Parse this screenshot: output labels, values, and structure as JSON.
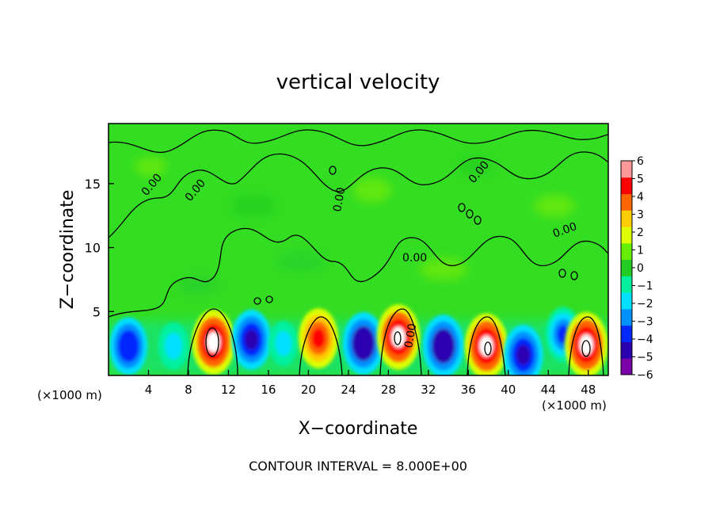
{
  "chart_data": {
    "type": "heatmap",
    "title": "vertical velocity",
    "xlabel": "X−coordinate",
    "ylabel": "Z−coordinate",
    "x_unit_left": "(×1000 m)",
    "x_unit_right": "(×1000 m)",
    "footer": "CONTOUR INTERVAL = 8.000E+00",
    "xlim": [
      0,
      50
    ],
    "ylim": [
      0,
      19.7
    ],
    "x_ticks": [
      4,
      8,
      12,
      16,
      20,
      24,
      28,
      32,
      36,
      40,
      44,
      48
    ],
    "y_ticks": [
      5,
      10,
      15
    ],
    "colorbar": {
      "min": -6,
      "max": 6,
      "ticks": [
        6,
        5,
        4,
        3,
        2,
        1,
        0,
        -1,
        -2,
        -3,
        -4,
        -5,
        -6
      ],
      "tick_labels": [
        "6",
        "5",
        "4",
        "3",
        "2",
        "1",
        "0",
        "−1",
        "−2",
        "−3",
        "−4",
        "−5",
        "−6"
      ],
      "colors": [
        "#7a00a8",
        "#2c00b0",
        "#0028ff",
        "#0090ff",
        "#00e0ff",
        "#00f0a0",
        "#22cc22",
        "#66ee00",
        "#ddff00",
        "#ffcc00",
        "#ff6600",
        "#ff0000",
        "#ff9999"
      ]
    },
    "contour_labels": [
      "0.00",
      "0.00",
      "0.00",
      "0.00",
      "0.00",
      "0.00",
      "0.00"
    ],
    "cells": [
      {
        "x": 2.0,
        "z": 2.3,
        "value": -4.5
      },
      {
        "x": 6.5,
        "z": 2.3,
        "value": -2.5
      },
      {
        "x": 10.5,
        "z": 2.6,
        "value": 6.0
      },
      {
        "x": 14.3,
        "z": 2.8,
        "value": -5.0
      },
      {
        "x": 17.5,
        "z": 2.5,
        "value": -2.0
      },
      {
        "x": 21.0,
        "z": 2.9,
        "value": 5.0
      },
      {
        "x": 25.5,
        "z": 2.5,
        "value": -5.5
      },
      {
        "x": 29.0,
        "z": 3.0,
        "value": 6.0
      },
      {
        "x": 33.5,
        "z": 2.3,
        "value": -5.5
      },
      {
        "x": 37.8,
        "z": 2.3,
        "value": 6.0
      },
      {
        "x": 41.5,
        "z": 1.6,
        "value": -5.0
      },
      {
        "x": 45.5,
        "z": 3.2,
        "value": -4.0
      },
      {
        "x": 47.8,
        "z": 2.4,
        "value": 6.0
      }
    ]
  }
}
